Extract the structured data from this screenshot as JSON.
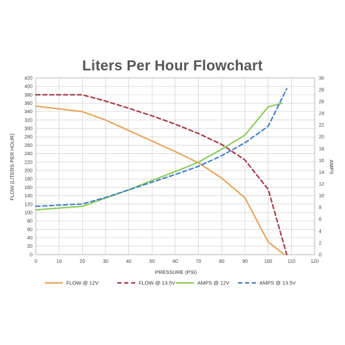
{
  "chart_data": {
    "type": "line",
    "title": "Liters Per Hour Flowchart",
    "xlabel": "PRESSURE (PSI)",
    "ylabel": "FLOW (LITERS PER HOUR)",
    "y2label": "AMPS",
    "xlim": [
      0,
      120
    ],
    "ylim": [
      0,
      420
    ],
    "y2lim": [
      0,
      30
    ],
    "x_ticks": [
      0,
      10,
      20,
      30,
      40,
      50,
      60,
      70,
      80,
      90,
      100,
      110,
      120
    ],
    "y_ticks": [
      0,
      20,
      40,
      60,
      80,
      100,
      120,
      140,
      160,
      180,
      200,
      220,
      240,
      260,
      280,
      300,
      320,
      340,
      360,
      380,
      400,
      420
    ],
    "y2_ticks": [
      0,
      2,
      4,
      6,
      8,
      10,
      12,
      14,
      16,
      18,
      20,
      22,
      24,
      26,
      28,
      30
    ],
    "grid": true,
    "legend_position": "bottom",
    "series": [
      {
        "name": "FLOW @ 12V",
        "axis": "left",
        "style": "solid",
        "color": "#e8a055",
        "x": [
          0,
          20,
          30,
          40,
          50,
          60,
          70,
          80,
          90,
          100,
          107
        ],
        "y": [
          353,
          340,
          320,
          295,
          270,
          245,
          218,
          182,
          135,
          30,
          0
        ]
      },
      {
        "name": "FLOW @ 13.5V",
        "axis": "left",
        "style": "dashed",
        "color": "#a03040",
        "x": [
          0,
          20,
          30,
          40,
          50,
          60,
          70,
          80,
          90,
          100,
          108
        ],
        "y": [
          380,
          380,
          365,
          348,
          330,
          310,
          288,
          262,
          225,
          155,
          0
        ]
      },
      {
        "name": "AMPS @ 12V",
        "axis": "right",
        "style": "solid",
        "color": "#88c954",
        "x": [
          0,
          20,
          30,
          40,
          50,
          60,
          70,
          80,
          90,
          100,
          106
        ],
        "y": [
          7.6,
          8.2,
          9.6,
          11.0,
          12.6,
          14.1,
          15.7,
          17.9,
          20.3,
          25.1,
          25.7
        ]
      },
      {
        "name": "AMPS @ 13.5V",
        "axis": "right",
        "style": "dashed",
        "color": "#3a7cc8",
        "x": [
          0,
          20,
          30,
          40,
          50,
          60,
          70,
          80,
          90,
          100,
          108
        ],
        "y": [
          8.2,
          8.6,
          9.7,
          11.0,
          12.3,
          13.6,
          15.0,
          16.8,
          19.0,
          21.8,
          28.2
        ]
      }
    ]
  }
}
